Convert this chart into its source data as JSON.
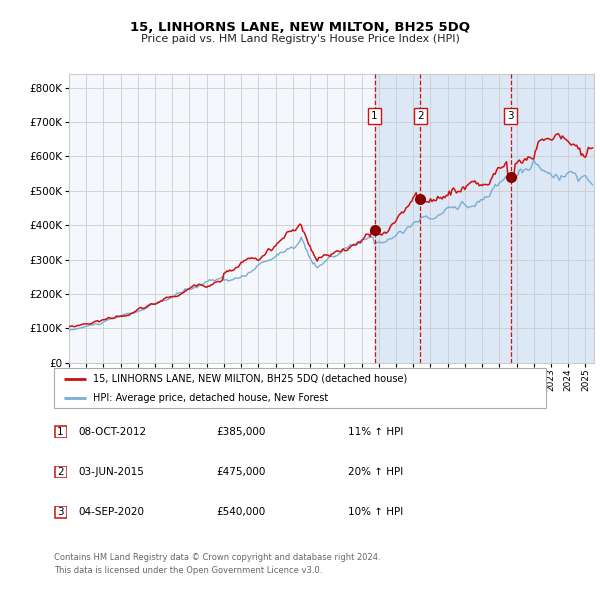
{
  "title": "15, LINHORNS LANE, NEW MILTON, BH25 5DQ",
  "subtitle": "Price paid vs. HM Land Registry's House Price Index (HPI)",
  "legend_line1": "15, LINHORNS LANE, NEW MILTON, BH25 5DQ (detached house)",
  "legend_line2": "HPI: Average price, detached house, New Forest",
  "footer1": "Contains HM Land Registry data © Crown copyright and database right 2024.",
  "footer2": "This data is licensed under the Open Government Licence v3.0.",
  "sales": [
    {
      "num": 1,
      "date": "08-OCT-2012",
      "price": "£385,000",
      "hpi_pct": "11%",
      "year": 2012.75
    },
    {
      "num": 2,
      "date": "03-JUN-2015",
      "price": "£475,000",
      "hpi_pct": "20%",
      "year": 2015.42
    },
    {
      "num": 3,
      "date": "04-SEP-2020",
      "price": "£540,000",
      "hpi_pct": "10%",
      "year": 2020.67
    }
  ],
  "hpi_color": "#7aadd4",
  "price_color": "#cc1111",
  "sale_dot_color": "#8b0000",
  "vline_color": "#cc1111",
  "shade_color": "#dce8f5",
  "grid_color": "#cccccc",
  "bg_color": "#f4f7fb",
  "ylim": [
    0,
    840000
  ],
  "xlim_start": 1995.0,
  "xlim_end": 2025.5,
  "yticks": [
    0,
    100000,
    200000,
    300000,
    400000,
    500000,
    600000,
    700000,
    800000
  ]
}
